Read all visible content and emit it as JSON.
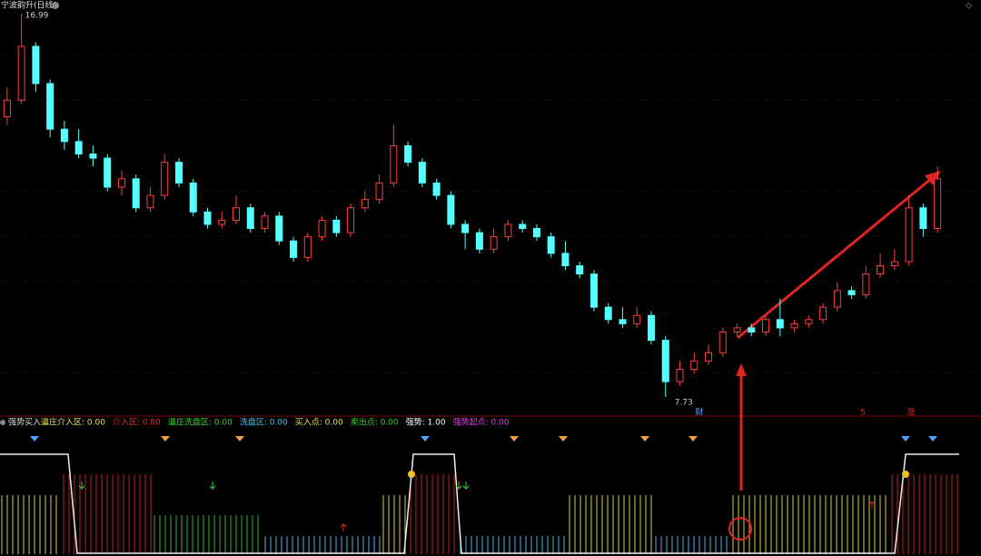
{
  "header": {
    "title": "宁波韵升(日线)"
  },
  "price_chart": {
    "type": "candlestick",
    "high_label": "16.99",
    "low_label": "7.73",
    "ylim": [
      7.73,
      16.99
    ],
    "up_color": "#ff3c3c",
    "down_color": "#54ffff",
    "candles": [
      [
        14.5,
        15.2,
        14.3,
        14.9
      ],
      [
        14.9,
        16.99,
        14.8,
        16.2
      ],
      [
        16.2,
        16.3,
        15.1,
        15.3
      ],
      [
        15.3,
        15.4,
        14.0,
        14.2
      ],
      [
        14.2,
        14.4,
        13.7,
        13.9
      ],
      [
        13.9,
        14.2,
        13.5,
        13.6
      ],
      [
        13.6,
        13.8,
        13.3,
        13.5
      ],
      [
        13.5,
        13.6,
        12.7,
        12.8
      ],
      [
        12.8,
        13.2,
        12.6,
        13.0
      ],
      [
        13.0,
        13.1,
        12.2,
        12.3
      ],
      [
        12.3,
        12.8,
        12.2,
        12.6
      ],
      [
        12.6,
        13.6,
        12.5,
        13.4
      ],
      [
        13.4,
        13.5,
        12.8,
        12.9
      ],
      [
        12.9,
        13.0,
        12.1,
        12.2
      ],
      [
        12.2,
        12.3,
        11.8,
        11.9
      ],
      [
        11.9,
        12.2,
        11.8,
        12.0
      ],
      [
        12.0,
        12.6,
        11.9,
        12.3
      ],
      [
        12.3,
        12.4,
        11.7,
        11.8
      ],
      [
        11.8,
        12.2,
        11.7,
        12.1
      ],
      [
        12.1,
        12.2,
        11.4,
        11.5
      ],
      [
        11.5,
        11.6,
        11.0,
        11.1
      ],
      [
        11.1,
        11.7,
        11.0,
        11.6
      ],
      [
        11.6,
        12.1,
        11.5,
        12.0
      ],
      [
        12.0,
        12.1,
        11.6,
        11.7
      ],
      [
        11.7,
        12.4,
        11.6,
        12.3
      ],
      [
        12.3,
        12.7,
        12.2,
        12.5
      ],
      [
        12.5,
        13.1,
        12.4,
        12.9
      ],
      [
        12.9,
        14.3,
        12.8,
        13.8
      ],
      [
        13.8,
        13.9,
        13.3,
        13.4
      ],
      [
        13.4,
        13.5,
        12.8,
        12.9
      ],
      [
        12.9,
        13.0,
        12.5,
        12.6
      ],
      [
        12.6,
        12.7,
        11.8,
        11.9
      ],
      [
        11.9,
        12.0,
        11.3,
        11.7
      ],
      [
        11.7,
        11.8,
        11.2,
        11.3
      ],
      [
        11.3,
        11.8,
        11.2,
        11.6
      ],
      [
        11.6,
        12.0,
        11.5,
        11.9
      ],
      [
        11.9,
        12.0,
        11.7,
        11.8
      ],
      [
        11.8,
        11.9,
        11.5,
        11.6
      ],
      [
        11.6,
        11.7,
        11.1,
        11.2
      ],
      [
        11.2,
        11.5,
        10.8,
        10.9
      ],
      [
        10.9,
        11.0,
        10.6,
        10.7
      ],
      [
        10.7,
        10.8,
        9.8,
        9.9
      ],
      [
        9.9,
        10.0,
        9.5,
        9.6
      ],
      [
        9.6,
        9.9,
        9.4,
        9.5
      ],
      [
        9.5,
        9.9,
        9.4,
        9.7
      ],
      [
        9.7,
        9.8,
        9.0,
        9.1
      ],
      [
        9.1,
        9.2,
        7.73,
        8.1
      ],
      [
        8.1,
        8.6,
        8.0,
        8.4
      ],
      [
        8.4,
        8.8,
        8.3,
        8.6
      ],
      [
        8.6,
        9.0,
        8.5,
        8.8
      ],
      [
        8.8,
        9.4,
        8.7,
        9.3
      ],
      [
        9.3,
        9.5,
        9.2,
        9.4
      ],
      [
        9.4,
        9.5,
        9.2,
        9.3
      ],
      [
        9.3,
        9.7,
        9.2,
        9.6
      ],
      [
        9.6,
        10.1,
        9.2,
        9.4
      ],
      [
        9.4,
        9.6,
        9.3,
        9.5
      ],
      [
        9.5,
        9.7,
        9.4,
        9.6
      ],
      [
        9.6,
        10.0,
        9.5,
        9.9
      ],
      [
        9.9,
        10.5,
        9.8,
        10.3
      ],
      [
        10.3,
        10.4,
        10.1,
        10.2
      ],
      [
        10.2,
        10.9,
        10.1,
        10.7
      ],
      [
        10.7,
        11.2,
        10.6,
        10.9
      ],
      [
        10.9,
        11.3,
        10.8,
        11.0
      ],
      [
        11.0,
        12.6,
        10.9,
        12.3
      ],
      [
        12.3,
        12.4,
        11.6,
        11.8
      ],
      [
        11.8,
        13.3,
        11.7,
        13.0
      ]
    ],
    "markers": [
      "财",
      "5",
      "涨"
    ]
  },
  "indicator": {
    "name": "强势买入",
    "items": [
      {
        "text": "逼庄介入区: 0.00",
        "color": "#e8e05a"
      },
      {
        "text": "介入区: 0.80",
        "color": "#e03030"
      },
      {
        "text": "逼庄洗盘区: 0.00",
        "color": "#3ad13a"
      },
      {
        "text": "洗盘区: 0.00",
        "color": "#4fc3e8"
      },
      {
        "text": "买入点: 0.00",
        "color": "#e8e05a"
      },
      {
        "text": "卖出点: 0.00",
        "color": "#3ad13a"
      },
      {
        "text": "强势: 1.00",
        "color": "#ffffff"
      },
      {
        "text": "强势起点: 0.00",
        "color": "#e040e0"
      }
    ]
  }
}
